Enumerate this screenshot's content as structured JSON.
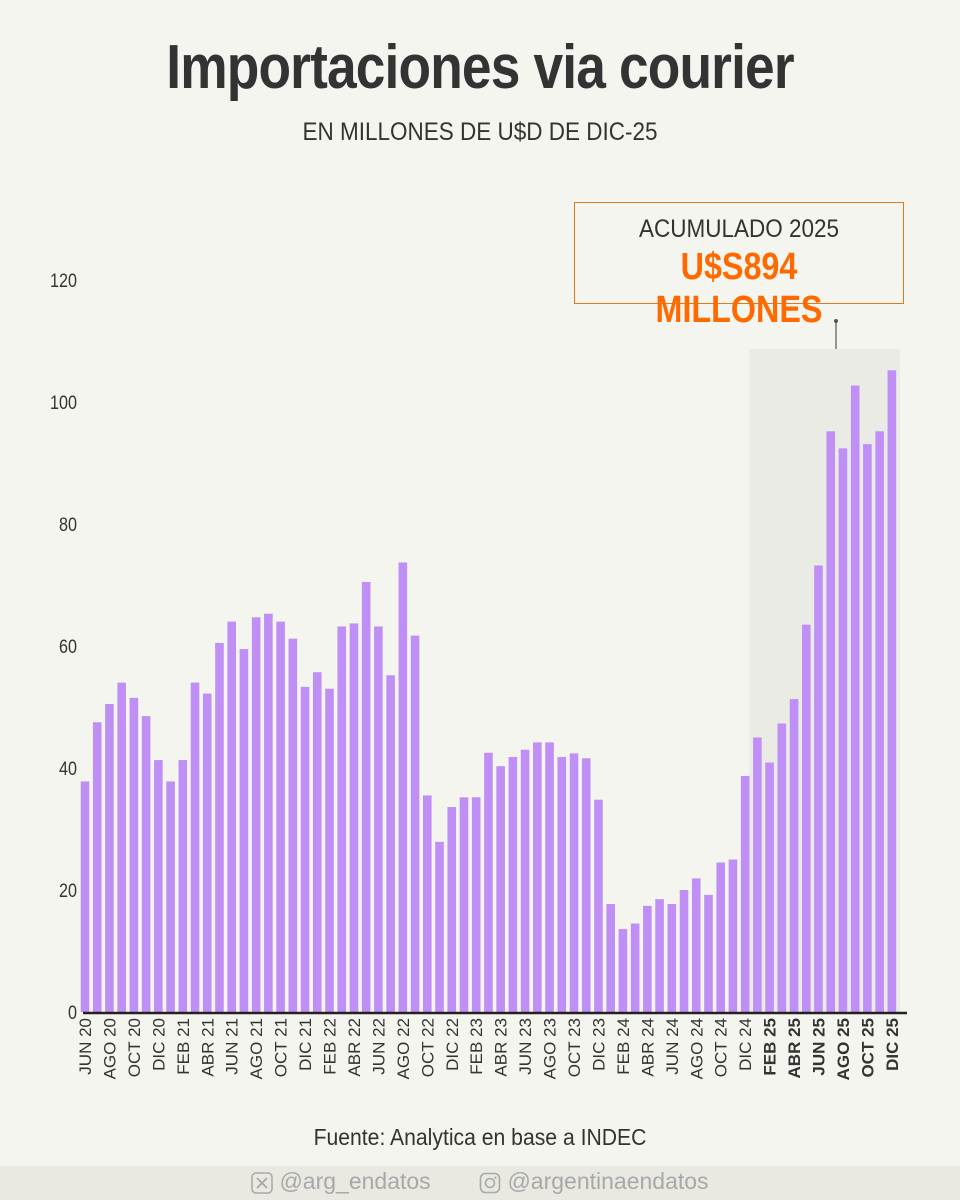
{
  "title": "Importaciones via courier",
  "subtitle": "EN MILLONES DE U$D DE DIC-25",
  "annotation": {
    "label": "ACUMULADO 2025",
    "value": "U$S894 MILLONES"
  },
  "source": "Fuente: Analytica en base a INDEC",
  "footer": {
    "twitter_icon": "x-logo-icon",
    "twitter": "@arg_endatos",
    "instagram_icon": "instagram-icon",
    "instagram": "@argentinaendatos"
  },
  "colors": {
    "bar": "#c08ff5",
    "highlight_bg": "#ebebe5",
    "annotation_border": "#e07a1f",
    "annotation_value": "#ff6a00"
  },
  "chart_data": {
    "type": "bar",
    "title": "Importaciones via courier",
    "subtitle": "EN MILLONES DE U$D DE DIC-25",
    "ylim": [
      0,
      120
    ],
    "yticks": [
      0,
      20,
      40,
      60,
      80,
      100,
      120
    ],
    "grid": false,
    "highlight_range": [
      "ENE 25",
      "DIC 25"
    ],
    "categories": [
      "JUN 20",
      "JUL 20",
      "AGO 20",
      "SEP 20",
      "OCT 20",
      "NOV 20",
      "DIC 20",
      "ENE 21",
      "FEB 21",
      "MAR 21",
      "ABR 21",
      "MAY 21",
      "JUN 21",
      "JUL 21",
      "AGO 21",
      "SEP 21",
      "OCT 21",
      "NOV 21",
      "DIC 21",
      "ENE 22",
      "FEB 22",
      "MAR 22",
      "ABR 22",
      "MAY 22",
      "JUN 22",
      "JUL 22",
      "AGO 22",
      "SEP 22",
      "OCT 22",
      "NOV 22",
      "DIC 22",
      "ENE 23",
      "FEB 23",
      "MAR 23",
      "ABR 23",
      "MAY 23",
      "JUN 23",
      "JUL 23",
      "AGO 23",
      "SEP 23",
      "OCT 23",
      "NOV 23",
      "DIC 23",
      "ENE 24",
      "FEB 24",
      "MAR 24",
      "ABR 24",
      "MAY 24",
      "JUN 24",
      "JUL 24",
      "AGO 24",
      "SEP 24",
      "OCT 24",
      "NOV 24",
      "DIC 24",
      "ENE 25",
      "FEB 25",
      "MAR 25",
      "ABR 25",
      "MAY 25",
      "JUN 25",
      "JUL 25",
      "AGO 25",
      "SEP 25",
      "OCT 25",
      "NOV 25",
      "DIC 25"
    ],
    "tick_labels": [
      "JUN 20",
      "AGO 20",
      "OCT 20",
      "DIC 20",
      "FEB 21",
      "ABR 21",
      "JUN 21",
      "AGO 21",
      "OCT 21",
      "DIC 21",
      "FEB 22",
      "ABR 22",
      "JUN 22",
      "AGO 22",
      "OCT 22",
      "DIC 22",
      "FEB 23",
      "ABR 23",
      "JUN 23",
      "AGO 23",
      "OCT 23",
      "DIC 23",
      "FEB 24",
      "ABR 24",
      "JUN 24",
      "AGO 24",
      "OCT 24",
      "DIC 24",
      "FEB 25",
      "ABR 25",
      "JUN 25",
      "AGO 25",
      "OCT 25",
      "DIC 25"
    ],
    "values": [
      37.8,
      47.5,
      50.5,
      54.0,
      51.5,
      48.5,
      41.3,
      37.8,
      41.3,
      54.0,
      52.2,
      60.5,
      64.0,
      59.5,
      64.7,
      65.3,
      64.0,
      61.2,
      53.3,
      55.7,
      53.0,
      63.2,
      63.7,
      70.5,
      63.2,
      55.2,
      73.7,
      61.7,
      35.5,
      27.9,
      33.6,
      35.2,
      35.2,
      42.5,
      40.3,
      41.8,
      43.0,
      44.2,
      44.2,
      41.8,
      42.4,
      41.6,
      34.8,
      17.7,
      13.6,
      14.5,
      17.4,
      18.5,
      17.7,
      20.0,
      21.9,
      19.2,
      24.5,
      25.0,
      38.7,
      45.0,
      40.9,
      47.3,
      51.3,
      63.5,
      73.2,
      95.2,
      92.4,
      102.7,
      93.1,
      95.2,
      105.2
    ]
  }
}
